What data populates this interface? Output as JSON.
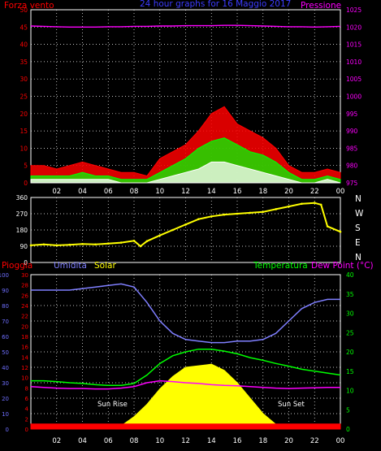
{
  "colors": {
    "background": "#000000",
    "grid": "#ffffff",
    "wind": "#ff0000",
    "wind_avg": "#00ff00",
    "wind_min": "#ffffff",
    "pressure": "#ff00ff",
    "direction": "#ffff00",
    "rain": "#ff0000",
    "humidity": "#7f7fff",
    "solar": "#ffff00",
    "temperature": "#00ff00",
    "dew_point": "#ff00ff",
    "title": "#3c3cff",
    "left_axis": "#ff0000",
    "humidity_axis": "#6f6fff",
    "right_axis_temp": "#00ff00",
    "right_axis_pressure": "#ff00ff",
    "axis_text": "#ffffff"
  },
  "chart_data": [
    {
      "type": "line",
      "title": "24 hour graphs for 16 Maggio 2017",
      "left_axis_label": "Forza vento",
      "right_axis_label": "Pressione",
      "x_ticks": [
        "02",
        "04",
        "06",
        "08",
        "10",
        "12",
        "14",
        "16",
        "18",
        "20",
        "22",
        "00"
      ],
      "ylim_left": [
        0,
        50
      ],
      "yticks_left": [
        "0",
        "5",
        "10",
        "15",
        "20",
        "25",
        "30",
        "35",
        "40",
        "45",
        "50"
      ],
      "ylim_right": [
        975,
        1025
      ],
      "yticks_right": [
        "975",
        "980",
        "985",
        "990",
        "995",
        "1000",
        "1005",
        "1010",
        "1015",
        "1020",
        "1025"
      ],
      "grid": true,
      "hours": [
        0,
        1,
        2,
        3,
        4,
        5,
        6,
        7,
        8,
        9,
        10,
        11,
        12,
        13,
        14,
        15,
        16,
        17,
        18,
        19,
        20,
        21,
        22,
        23,
        24
      ],
      "series": [
        {
          "key": "wind_gust",
          "values": [
            5,
            5,
            4,
            5,
            6,
            5,
            4,
            3,
            3,
            2,
            7,
            9,
            11,
            15,
            20,
            22,
            17,
            15,
            13,
            10,
            5,
            3,
            3,
            4,
            3
          ]
        },
        {
          "key": "wind_avg",
          "values": [
            2,
            2,
            2,
            2,
            3,
            2,
            2,
            1,
            1,
            1,
            3,
            5,
            7,
            10,
            12,
            13,
            11,
            9,
            8,
            6,
            3,
            1,
            1,
            2,
            1
          ]
        },
        {
          "key": "wind_min",
          "values": [
            1,
            1,
            1,
            1,
            1,
            1,
            1,
            0,
            0,
            0,
            1,
            2,
            3,
            4,
            6,
            6,
            5,
            4,
            3,
            2,
            1,
            0,
            0,
            1,
            0
          ]
        },
        {
          "key": "pressure",
          "values": [
            1020.3,
            1020.2,
            1020.1,
            1020,
            1020,
            1020,
            1020.1,
            1020.1,
            1020.2,
            1020.2,
            1020.3,
            1020.3,
            1020.4,
            1020.4,
            1020.4,
            1020.5,
            1020.5,
            1020.4,
            1020.3,
            1020.2,
            1020.1,
            1020.1,
            1020,
            1020.1,
            1020.2
          ]
        }
      ]
    },
    {
      "type": "scatter",
      "right_labels": [
        "N",
        "W",
        "S",
        "E",
        "N"
      ],
      "yticks": [
        "0",
        "90",
        "180",
        "270",
        "360"
      ],
      "ylim": [
        0,
        360
      ],
      "grid": true,
      "hours": [
        0,
        1,
        2,
        3,
        4,
        5,
        6,
        7,
        8,
        8.5,
        9,
        10,
        11,
        12,
        13,
        14,
        15,
        16,
        17,
        18,
        19,
        20,
        21,
        22,
        22.5,
        23,
        24
      ],
      "series": [
        {
          "key": "wind_direction",
          "values": [
            95,
            100,
            95,
            98,
            102,
            100,
            105,
            110,
            120,
            90,
            118,
            150,
            180,
            210,
            240,
            255,
            265,
            270,
            275,
            280,
            295,
            310,
            325,
            330,
            320,
            200,
            170
          ]
        }
      ]
    },
    {
      "type": "line",
      "labels": {
        "rain": "Pioggia",
        "humidity": "Umidita",
        "solar": "Solar",
        "temperature": "Temperatura",
        "dew_point": "Dew Point (°C)"
      },
      "sun_rise_label": "Sun Rise",
      "sun_set_label": "Sun Set",
      "x_ticks": [
        "02",
        "04",
        "06",
        "08",
        "10",
        "12",
        "14",
        "16",
        "18",
        "20",
        "22",
        "00"
      ],
      "yticks_humidity": [
        "0",
        "10",
        "20",
        "30",
        "40",
        "50",
        "60",
        "70",
        "80",
        "90",
        "100"
      ],
      "ylim_humidity": [
        0,
        100
      ],
      "yticks_rain": [
        "0",
        "2",
        "4",
        "6",
        "8",
        "10",
        "12",
        "14",
        "16",
        "18",
        "20",
        "22",
        "24",
        "26",
        "28",
        "30"
      ],
      "ylim_rain": [
        0,
        30
      ],
      "yticks_temp": [
        "0",
        "5",
        "10",
        "15",
        "20",
        "25",
        "30",
        "35",
        "40"
      ],
      "ylim_temp": [
        0,
        40
      ],
      "grid": true,
      "hours": [
        0,
        1,
        2,
        3,
        4,
        5,
        6,
        7,
        8,
        9,
        10,
        11,
        12,
        13,
        14,
        15,
        16,
        17,
        18,
        19,
        20,
        21,
        22,
        23,
        24
      ],
      "series": [
        {
          "key": "humidity",
          "values": [
            90,
            90,
            90,
            90,
            91,
            92,
            93,
            94,
            92,
            82,
            70,
            62,
            58,
            57,
            56,
            56,
            57,
            57,
            58,
            62,
            70,
            78,
            82,
            84,
            84
          ]
        },
        {
          "key": "temperature",
          "values": [
            12.5,
            12.5,
            12.3,
            12,
            11.8,
            11.5,
            11.3,
            11.3,
            11.8,
            14,
            17,
            19,
            20,
            20.7,
            20.7,
            20.2,
            19.5,
            18.5,
            17.8,
            17,
            16.3,
            15.5,
            15,
            14.5,
            14
          ]
        },
        {
          "key": "dew_point",
          "values": [
            11,
            10.8,
            10.6,
            10.5,
            10.5,
            10.4,
            10.4,
            10.6,
            11,
            12,
            12.5,
            12.3,
            12,
            11.8,
            11.5,
            11.3,
            11.2,
            11,
            10.8,
            10.6,
            10.5,
            10.6,
            10.7,
            10.8,
            10.8
          ]
        },
        {
          "key": "solar",
          "values": [
            0,
            0,
            0,
            0,
            0,
            0,
            0,
            2,
            8,
            16,
            26,
            34,
            40,
            41,
            42,
            38,
            30,
            20,
            10,
            3,
            0,
            0,
            0,
            0,
            0
          ]
        },
        {
          "key": "rain",
          "values": [
            1,
            1,
            1,
            1,
            1,
            1,
            1,
            1,
            1,
            1,
            1,
            1,
            1,
            1,
            1,
            1,
            1,
            1,
            1,
            1,
            1,
            1,
            1,
            1,
            1
          ]
        }
      ]
    }
  ]
}
